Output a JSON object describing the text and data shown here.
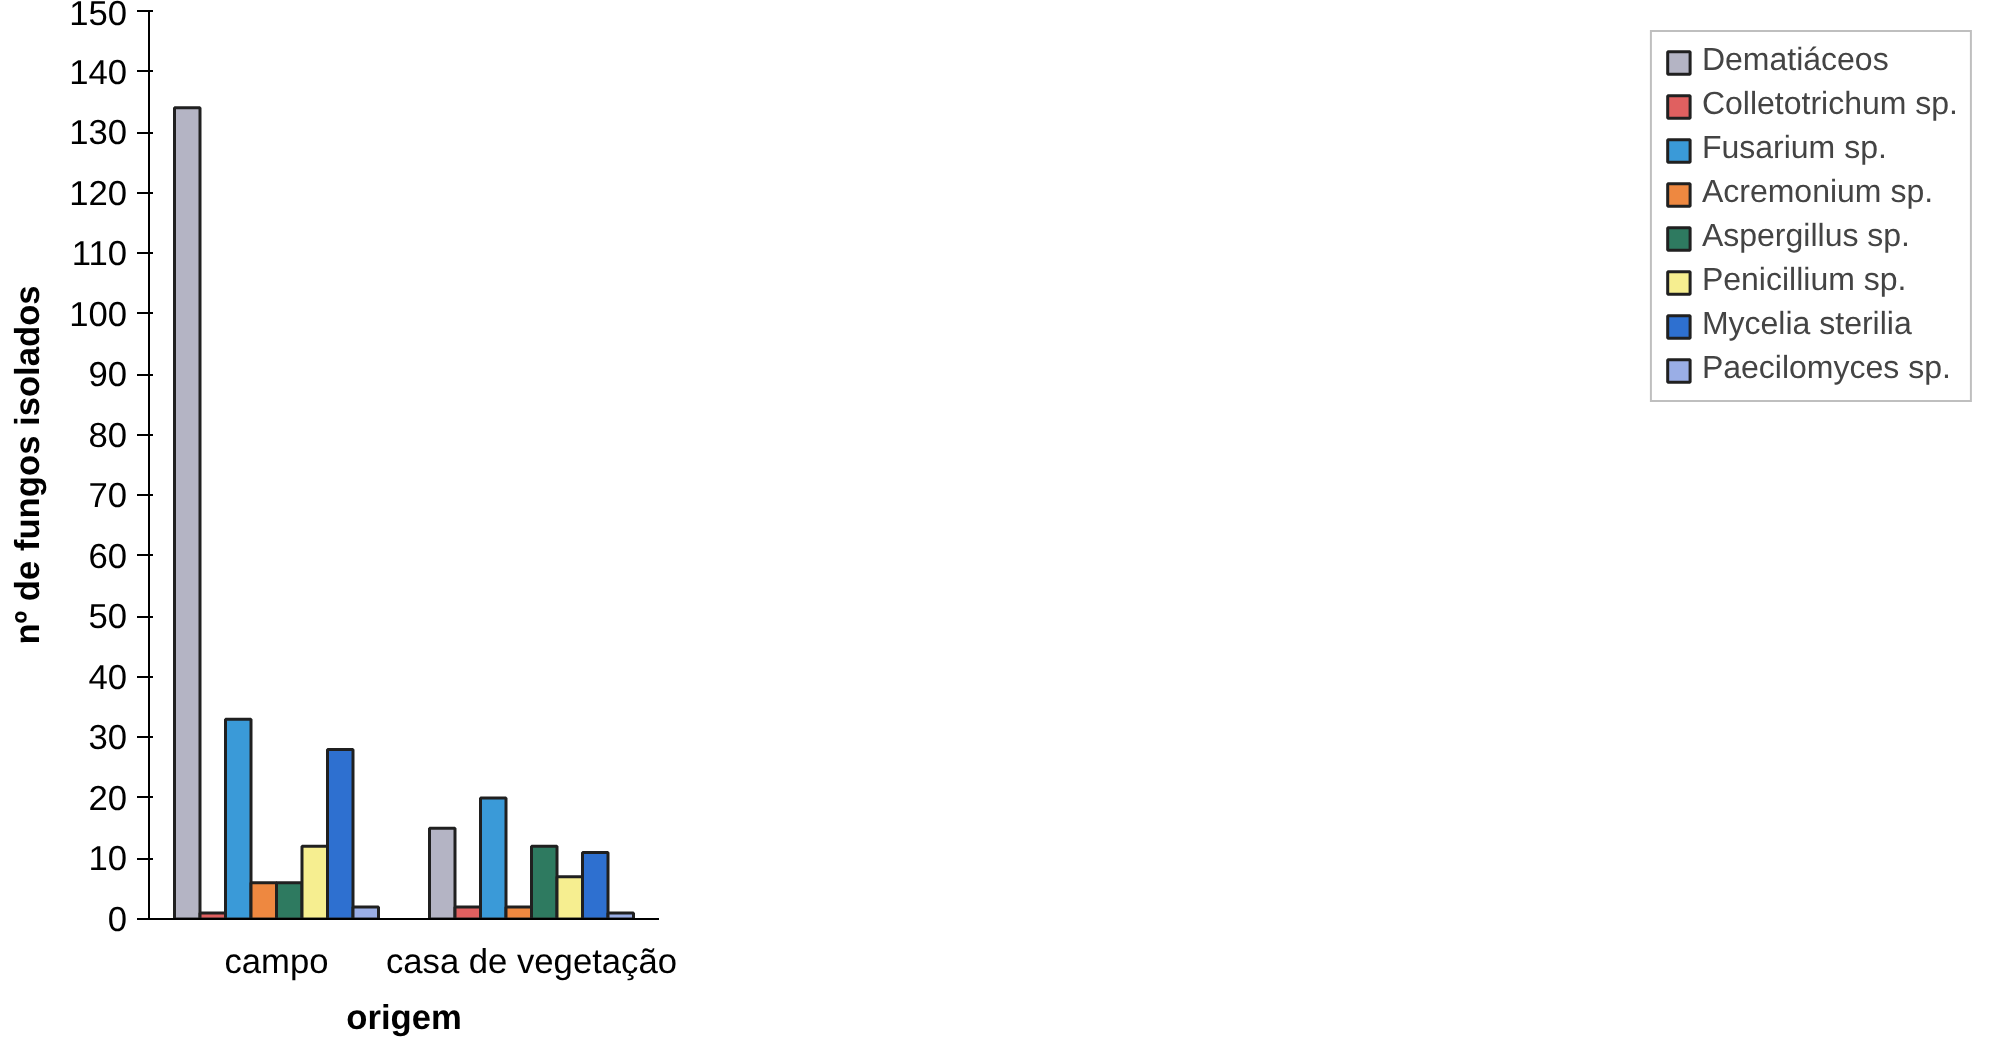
{
  "chart_data": {
    "type": "bar",
    "xlabel": "origem",
    "ylabel": "nº de fungos isolados",
    "categories": [
      "campo",
      "casa de vegetação"
    ],
    "series": [
      {
        "name": "Dematiáceos",
        "color": "#b4b4c4",
        "values": [
          134,
          15
        ]
      },
      {
        "name": "Colletotrichum sp.",
        "color": "#e06060",
        "values": [
          1,
          2
        ]
      },
      {
        "name": "Fusarium sp.",
        "color": "#3a9ad8",
        "values": [
          33,
          20
        ]
      },
      {
        "name": "Acremonium sp.",
        "color": "#ee8840",
        "values": [
          6,
          2
        ]
      },
      {
        "name": "Aspergillus sp.",
        "color": "#2e7a60",
        "values": [
          6,
          12
        ]
      },
      {
        "name": "Penicillium sp.",
        "color": "#f6ee90",
        "values": [
          12,
          7
        ]
      },
      {
        "name": "Mycelia sterilia",
        "color": "#2e70d0",
        "values": [
          28,
          11
        ]
      },
      {
        "name": "Paecilomyces sp.",
        "color": "#9aaee6",
        "values": [
          2,
          1
        ]
      }
    ],
    "ylim": [
      0,
      150
    ],
    "yticks": [
      0,
      10,
      20,
      30,
      40,
      50,
      60,
      70,
      80,
      90,
      100,
      110,
      120,
      130,
      140,
      150
    ],
    "grid": false,
    "legend": "right"
  }
}
